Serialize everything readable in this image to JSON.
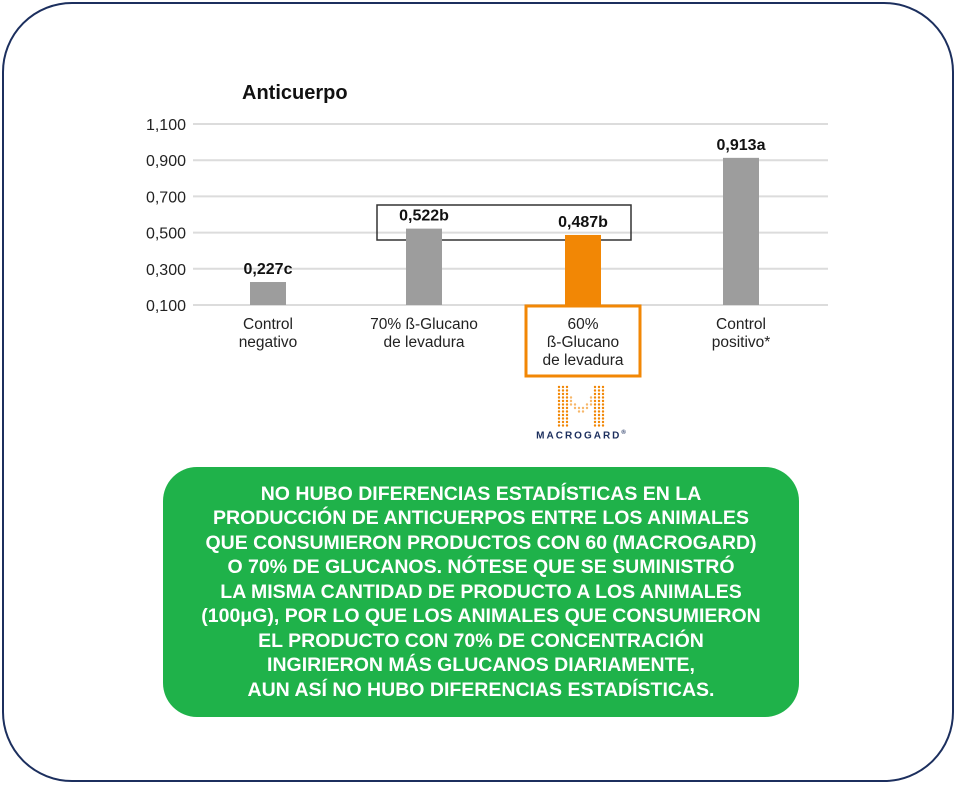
{
  "chart_data": {
    "type": "bar",
    "title": "Anticuerpo",
    "categories": [
      [
        "Control",
        "negativo"
      ],
      [
        "70% ß-Glucano",
        "de levadura"
      ],
      [
        "60%",
        "ß-Glucano",
        "de levadura"
      ],
      [
        "Control",
        "positivo*"
      ]
    ],
    "values": [
      0.227,
      0.522,
      0.487,
      0.913
    ],
    "data_labels": [
      "0,227c",
      "0,522b",
      "0,487b",
      "0,913a"
    ],
    "yticks": [
      0.1,
      0.3,
      0.5,
      0.7,
      0.9,
      1.1
    ],
    "ytick_labels": [
      "0,100",
      "0,300",
      "0,500",
      "0,700",
      "0,900",
      "1,100"
    ],
    "ylim": [
      0.1,
      1.1
    ],
    "grid": true,
    "colors": [
      "#9d9d9d",
      "#9d9d9d",
      "#f28705",
      "#9d9d9d"
    ],
    "highlight_index": 2
  },
  "brand": {
    "name": "MACROGARD",
    "mark": "®",
    "color": "#f28705"
  },
  "note": {
    "lines": [
      "NO HUBO DIFERENCIAS ESTADÍSTICAS EN LA",
      "PRODUCCIÓN DE ANTICUERPOS ENTRE LOS ANIMALES",
      "QUE CONSUMIERON PRODUCTOS CON 60 (MACROGARD)",
      "O 70% DE GLUCANOS. NÓTESE QUE SE SUMINISTRÓ",
      "LA MISMA CANTIDAD DE PRODUCTO A LOS ANIMALES",
      "(100μG), POR LO QUE LOS ANIMALES QUE CONSUMIERON",
      "EL PRODUCTO CON 70% DE CONCENTRACIÓN",
      "INGIRIERON MÁS GLUCANOS DIARIAMENTE,",
      "AUN ASÍ NO HUBO DIFERENCIAS ESTADÍSTICAS."
    ]
  }
}
